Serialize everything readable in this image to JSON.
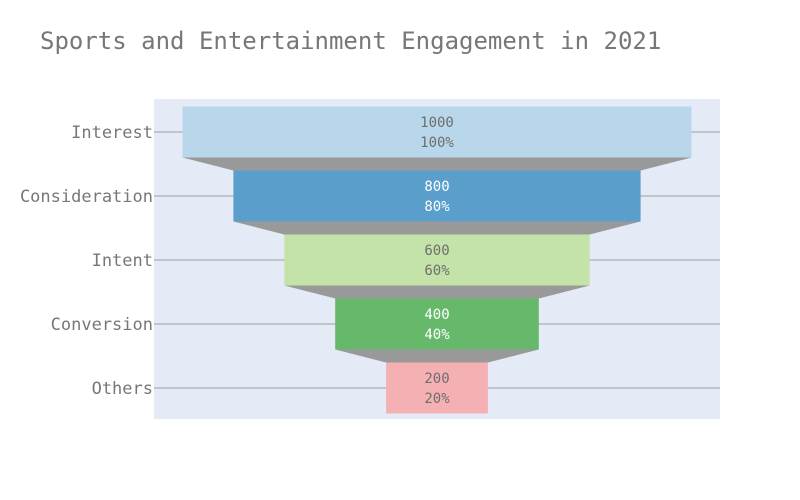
{
  "chart_data": {
    "type": "funnel",
    "title": "Sports and Entertainment Engagement in 2021",
    "categories": [
      "Interest",
      "Consideration",
      "Intent",
      "Conversion",
      "Others"
    ],
    "values": [
      1000,
      800,
      600,
      400,
      200
    ],
    "percent_labels": [
      "100%",
      "80%",
      "60%",
      "40%",
      "20%"
    ],
    "colors": [
      "#b9d7ea",
      "#5a9ecb",
      "#c3e3a8",
      "#66b86a",
      "#f5b0b4"
    ],
    "label_colors": [
      "#6e6e6e",
      "#ffffff",
      "#6e6e6e",
      "#ffffff",
      "#6e6e6e"
    ],
    "connector_color": "#999999",
    "plot_background": "#e5ebf6",
    "grid": true
  }
}
